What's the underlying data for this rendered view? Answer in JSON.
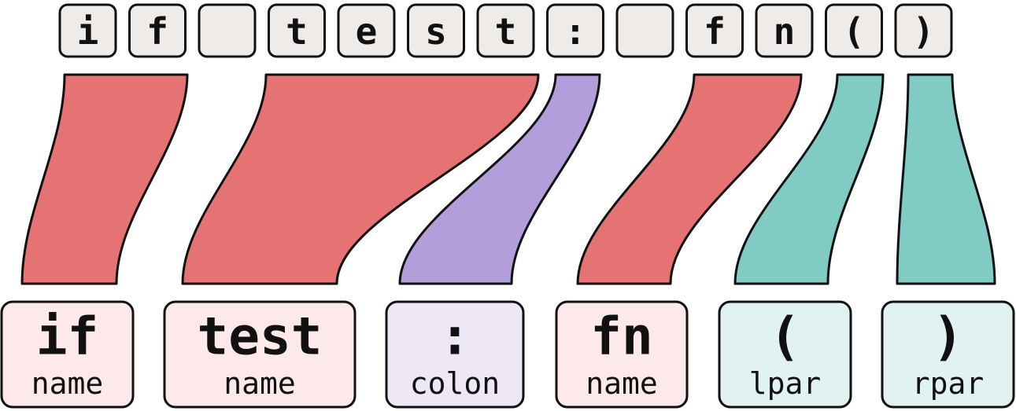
{
  "colors": {
    "char_box_fill": "#efebe8",
    "outline": "#111111",
    "name_ribbon": "#e57373",
    "colon_ribbon": "#b39ddb",
    "paren_ribbon": "#80cbc4",
    "name_box_fill": "#fde8ea",
    "colon_box_fill": "#ede7f6",
    "paren_box_fill": "#e0f2f1"
  },
  "characters": [
    "i",
    "f",
    " ",
    "t",
    "e",
    "s",
    "t",
    ":",
    " ",
    "f",
    "n",
    "(",
    ")"
  ],
  "tokens": [
    {
      "text": "if",
      "kind": "name",
      "kind_color": "name"
    },
    {
      "text": "test",
      "kind": "name",
      "kind_color": "name"
    },
    {
      "text": ":",
      "kind": "colon",
      "kind_color": "colon"
    },
    {
      "text": "fn",
      "kind": "name",
      "kind_color": "name"
    },
    {
      "text": "(",
      "kind": "lpar",
      "kind_color": "paren"
    },
    {
      "text": ")",
      "kind": "rpar",
      "kind_color": "paren"
    }
  ]
}
